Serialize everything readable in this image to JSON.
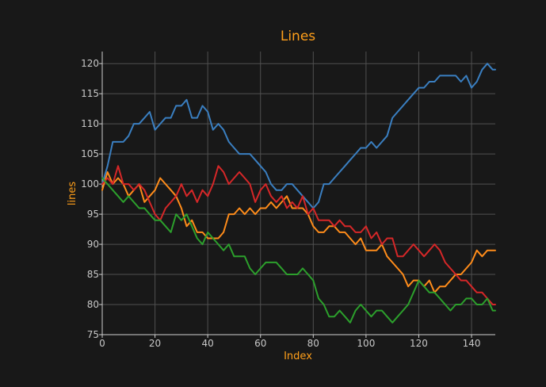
{
  "chart_data": {
    "type": "line",
    "title": "Lines",
    "xlabel": "Index",
    "ylabel": "lines",
    "xlim": [
      0,
      149
    ],
    "ylim": [
      75,
      122
    ],
    "x_ticks": [
      0,
      20,
      40,
      60,
      80,
      100,
      120,
      140
    ],
    "y_ticks": [
      75,
      80,
      85,
      90,
      95,
      100,
      105,
      110,
      115,
      120
    ],
    "grid": true,
    "legend": "none",
    "series": [
      {
        "color": "#3a7fc1",
        "points": [
          [
            0,
            100
          ],
          [
            2,
            103
          ],
          [
            4,
            107
          ],
          [
            6,
            107
          ],
          [
            8,
            107
          ],
          [
            10,
            108
          ],
          [
            12,
            110
          ],
          [
            14,
            110
          ],
          [
            16,
            111
          ],
          [
            18,
            112
          ],
          [
            20,
            109
          ],
          [
            22,
            110
          ],
          [
            24,
            111
          ],
          [
            26,
            111
          ],
          [
            28,
            113
          ],
          [
            30,
            113
          ],
          [
            32,
            114
          ],
          [
            34,
            111
          ],
          [
            36,
            111
          ],
          [
            38,
            113
          ],
          [
            40,
            112
          ],
          [
            42,
            109
          ],
          [
            44,
            110
          ],
          [
            46,
            109
          ],
          [
            48,
            107
          ],
          [
            50,
            106
          ],
          [
            52,
            105
          ],
          [
            54,
            105
          ],
          [
            56,
            105
          ],
          [
            58,
            104
          ],
          [
            60,
            103
          ],
          [
            62,
            102
          ],
          [
            64,
            100
          ],
          [
            66,
            99
          ],
          [
            68,
            99
          ],
          [
            70,
            100
          ],
          [
            72,
            100
          ],
          [
            74,
            99
          ],
          [
            76,
            98
          ],
          [
            78,
            97
          ],
          [
            80,
            96
          ],
          [
            82,
            97
          ],
          [
            84,
            100
          ],
          [
            86,
            100
          ],
          [
            88,
            101
          ],
          [
            90,
            102
          ],
          [
            92,
            103
          ],
          [
            94,
            104
          ],
          [
            96,
            105
          ],
          [
            98,
            106
          ],
          [
            100,
            106
          ],
          [
            102,
            107
          ],
          [
            104,
            106
          ],
          [
            106,
            107
          ],
          [
            108,
            108
          ],
          [
            110,
            111
          ],
          [
            112,
            112
          ],
          [
            114,
            113
          ],
          [
            116,
            114
          ],
          [
            118,
            115
          ],
          [
            120,
            116
          ],
          [
            122,
            116
          ],
          [
            124,
            117
          ],
          [
            126,
            117
          ],
          [
            128,
            118
          ],
          [
            130,
            118
          ],
          [
            132,
            118
          ],
          [
            134,
            118
          ],
          [
            136,
            117
          ],
          [
            138,
            118
          ],
          [
            140,
            116
          ],
          [
            142,
            117
          ],
          [
            144,
            119
          ],
          [
            146,
            120
          ],
          [
            148,
            119
          ],
          [
            149,
            119
          ]
        ]
      },
      {
        "color": "#ff8c1a",
        "points": [
          [
            0,
            99
          ],
          [
            2,
            102
          ],
          [
            4,
            100
          ],
          [
            6,
            101
          ],
          [
            8,
            100
          ],
          [
            10,
            98
          ],
          [
            12,
            99
          ],
          [
            14,
            100
          ],
          [
            16,
            97
          ],
          [
            18,
            98
          ],
          [
            20,
            99
          ],
          [
            22,
            101
          ],
          [
            24,
            100
          ],
          [
            26,
            99
          ],
          [
            28,
            98
          ],
          [
            30,
            96
          ],
          [
            32,
            93
          ],
          [
            34,
            94
          ],
          [
            36,
            92
          ],
          [
            38,
            92
          ],
          [
            40,
            91
          ],
          [
            42,
            91
          ],
          [
            44,
            91
          ],
          [
            46,
            92
          ],
          [
            48,
            95
          ],
          [
            50,
            95
          ],
          [
            52,
            96
          ],
          [
            54,
            95
          ],
          [
            56,
            96
          ],
          [
            58,
            95
          ],
          [
            60,
            96
          ],
          [
            62,
            96
          ],
          [
            64,
            97
          ],
          [
            66,
            96
          ],
          [
            68,
            97
          ],
          [
            70,
            98
          ],
          [
            72,
            96
          ],
          [
            74,
            96
          ],
          [
            76,
            96
          ],
          [
            78,
            95
          ],
          [
            80,
            93
          ],
          [
            82,
            92
          ],
          [
            84,
            92
          ],
          [
            86,
            93
          ],
          [
            88,
            93
          ],
          [
            90,
            92
          ],
          [
            92,
            92
          ],
          [
            94,
            91
          ],
          [
            96,
            90
          ],
          [
            98,
            91
          ],
          [
            100,
            89
          ],
          [
            102,
            89
          ],
          [
            104,
            89
          ],
          [
            106,
            90
          ],
          [
            108,
            88
          ],
          [
            110,
            87
          ],
          [
            112,
            86
          ],
          [
            114,
            85
          ],
          [
            116,
            83
          ],
          [
            118,
            84
          ],
          [
            120,
            84
          ],
          [
            122,
            83
          ],
          [
            124,
            84
          ],
          [
            126,
            82
          ],
          [
            128,
            83
          ],
          [
            130,
            83
          ],
          [
            132,
            84
          ],
          [
            134,
            85
          ],
          [
            136,
            85
          ],
          [
            138,
            86
          ],
          [
            140,
            87
          ],
          [
            142,
            89
          ],
          [
            144,
            88
          ],
          [
            146,
            89
          ],
          [
            148,
            89
          ],
          [
            149,
            89
          ]
        ]
      },
      {
        "color": "#d62728",
        "points": [
          [
            0,
            100
          ],
          [
            2,
            101
          ],
          [
            4,
            100
          ],
          [
            6,
            103
          ],
          [
            8,
            100
          ],
          [
            10,
            100
          ],
          [
            12,
            99
          ],
          [
            14,
            100
          ],
          [
            16,
            99
          ],
          [
            18,
            97
          ],
          [
            20,
            95
          ],
          [
            22,
            94
          ],
          [
            24,
            96
          ],
          [
            26,
            97
          ],
          [
            28,
            98
          ],
          [
            30,
            100
          ],
          [
            32,
            98
          ],
          [
            34,
            99
          ],
          [
            36,
            97
          ],
          [
            38,
            99
          ],
          [
            40,
            98
          ],
          [
            42,
            100
          ],
          [
            44,
            103
          ],
          [
            46,
            102
          ],
          [
            48,
            100
          ],
          [
            50,
            101
          ],
          [
            52,
            102
          ],
          [
            54,
            101
          ],
          [
            56,
            100
          ],
          [
            58,
            97
          ],
          [
            60,
            99
          ],
          [
            62,
            100
          ],
          [
            64,
            98
          ],
          [
            66,
            97
          ],
          [
            68,
            98
          ],
          [
            70,
            96
          ],
          [
            72,
            97
          ],
          [
            74,
            96
          ],
          [
            76,
            98
          ],
          [
            78,
            95
          ],
          [
            80,
            96
          ],
          [
            82,
            94
          ],
          [
            84,
            94
          ],
          [
            86,
            94
          ],
          [
            88,
            93
          ],
          [
            90,
            94
          ],
          [
            92,
            93
          ],
          [
            94,
            93
          ],
          [
            96,
            92
          ],
          [
            98,
            92
          ],
          [
            100,
            93
          ],
          [
            102,
            91
          ],
          [
            104,
            92
          ],
          [
            106,
            90
          ],
          [
            108,
            91
          ],
          [
            110,
            91
          ],
          [
            112,
            88
          ],
          [
            114,
            88
          ],
          [
            116,
            89
          ],
          [
            118,
            90
          ],
          [
            120,
            89
          ],
          [
            122,
            88
          ],
          [
            124,
            89
          ],
          [
            126,
            90
          ],
          [
            128,
            89
          ],
          [
            130,
            87
          ],
          [
            132,
            86
          ],
          [
            134,
            85
          ],
          [
            136,
            84
          ],
          [
            138,
            84
          ],
          [
            140,
            83
          ],
          [
            142,
            82
          ],
          [
            144,
            82
          ],
          [
            146,
            81
          ],
          [
            148,
            80
          ],
          [
            149,
            80
          ]
        ]
      },
      {
        "color": "#2ca02c",
        "points": [
          [
            0,
            101
          ],
          [
            2,
            100
          ],
          [
            4,
            99
          ],
          [
            6,
            98
          ],
          [
            8,
            97
          ],
          [
            10,
            98
          ],
          [
            12,
            97
          ],
          [
            14,
            96
          ],
          [
            16,
            96
          ],
          [
            18,
            95
          ],
          [
            20,
            94
          ],
          [
            22,
            94
          ],
          [
            24,
            93
          ],
          [
            26,
            92
          ],
          [
            28,
            95
          ],
          [
            30,
            94
          ],
          [
            32,
            95
          ],
          [
            34,
            93
          ],
          [
            36,
            91
          ],
          [
            38,
            90
          ],
          [
            40,
            92
          ],
          [
            42,
            91
          ],
          [
            44,
            90
          ],
          [
            46,
            89
          ],
          [
            48,
            90
          ],
          [
            50,
            88
          ],
          [
            52,
            88
          ],
          [
            54,
            88
          ],
          [
            56,
            86
          ],
          [
            58,
            85
          ],
          [
            60,
            86
          ],
          [
            62,
            87
          ],
          [
            64,
            87
          ],
          [
            66,
            87
          ],
          [
            68,
            86
          ],
          [
            70,
            85
          ],
          [
            72,
            85
          ],
          [
            74,
            85
          ],
          [
            76,
            86
          ],
          [
            78,
            85
          ],
          [
            80,
            84
          ],
          [
            82,
            81
          ],
          [
            84,
            80
          ],
          [
            86,
            78
          ],
          [
            88,
            78
          ],
          [
            90,
            79
          ],
          [
            92,
            78
          ],
          [
            94,
            77
          ],
          [
            96,
            79
          ],
          [
            98,
            80
          ],
          [
            100,
            79
          ],
          [
            102,
            78
          ],
          [
            104,
            79
          ],
          [
            106,
            79
          ],
          [
            108,
            78
          ],
          [
            110,
            77
          ],
          [
            112,
            78
          ],
          [
            114,
            79
          ],
          [
            116,
            80
          ],
          [
            118,
            82
          ],
          [
            120,
            84
          ],
          [
            122,
            83
          ],
          [
            124,
            82
          ],
          [
            126,
            82
          ],
          [
            128,
            81
          ],
          [
            130,
            80
          ],
          [
            132,
            79
          ],
          [
            134,
            80
          ],
          [
            136,
            80
          ],
          [
            138,
            81
          ],
          [
            140,
            81
          ],
          [
            142,
            80
          ],
          [
            144,
            80
          ],
          [
            146,
            81
          ],
          [
            148,
            79
          ],
          [
            149,
            79
          ]
        ]
      }
    ]
  }
}
